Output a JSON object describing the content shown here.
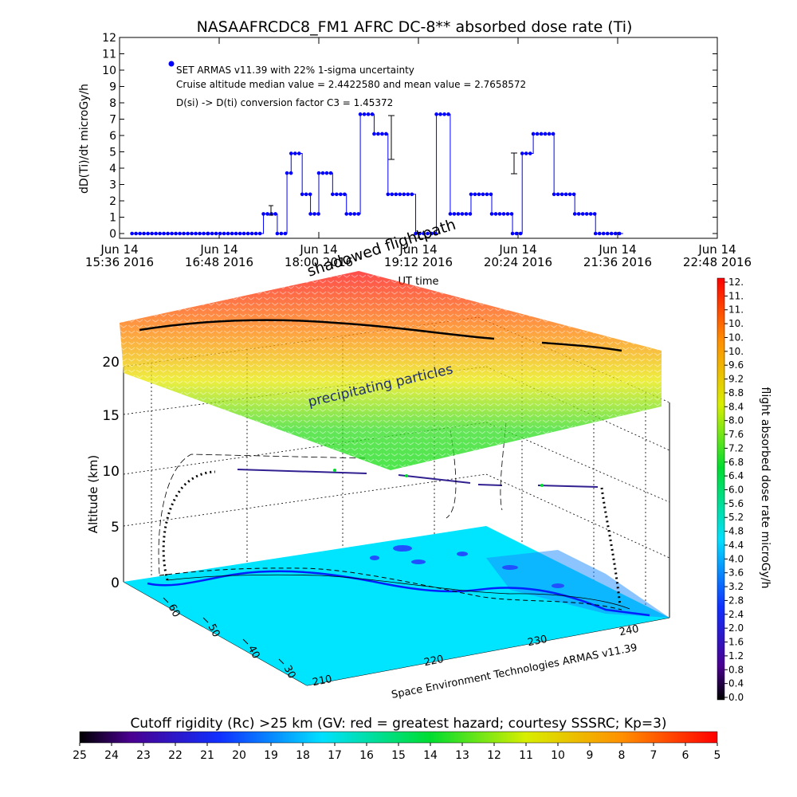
{
  "top_chart": {
    "title": "NASAAFRCDC8_FM1 AFRC DC-8** absorbed dose rate (Ti)",
    "ylabel": "dD(Ti)/dt microGy/h",
    "xlabel": "UT time",
    "legend": "SET ARMAS v11.39 with 22% 1-sigma uncertainty",
    "annotation_1": "Cruise altitude median value = 2.4422580 and mean value = 2.7658572",
    "annotation_2": "D(si) -> D(ti) conversion factor C3 = 1.45372",
    "y_ticks": [
      "0",
      "1",
      "2",
      "3",
      "4",
      "5",
      "6",
      "7",
      "8",
      "9",
      "10",
      "11",
      "12"
    ],
    "x_tick_dates": [
      "Jun 14",
      "Jun 14",
      "Jun 14",
      "Jun 14",
      "Jun 14",
      "Jun 14",
      "Jun 14"
    ],
    "x_tick_times": [
      "15:36 2016",
      "16:48 2016",
      "18:00 2016",
      "19:12 2016",
      "20:24 2016",
      "21:36 2016",
      "22:48 2016"
    ]
  },
  "chart_data": [
    {
      "type": "line",
      "title": "NASAAFRCDC8_FM1 AFRC DC-8** absorbed dose rate (Ti)",
      "xlabel": "UT time",
      "ylabel": "dD(Ti)/dt microGy/h",
      "ylim": [
        0,
        12
      ],
      "xlim": [
        "2016-06-14 15:36",
        "2016-06-14 22:48"
      ],
      "grid": false,
      "legend": "top-left",
      "series": [
        {
          "name": "SET ARMAS v11.39 with 22% 1-sigma uncertainty",
          "x": [
            "2016-06-14 15:45",
            "2016-06-14 16:40",
            "2016-06-14 17:20",
            "2016-06-14 17:30",
            "2016-06-14 17:37",
            "2016-06-14 17:40",
            "2016-06-14 17:48",
            "2016-06-14 17:54",
            "2016-06-14 18:00",
            "2016-06-14 18:10",
            "2016-06-14 18:20",
            "2016-06-14 18:30",
            "2016-06-14 18:40",
            "2016-06-14 18:50",
            "2016-06-14 19:10",
            "2016-06-14 19:25",
            "2016-06-14 19:35",
            "2016-06-14 19:50",
            "2016-06-14 20:05",
            "2016-06-14 20:20",
            "2016-06-14 20:27",
            "2016-06-14 20:35",
            "2016-06-14 20:50",
            "2016-06-14 21:05",
            "2016-06-14 21:20",
            "2016-06-14 21:40"
          ],
          "y": [
            0,
            0,
            1.2,
            0,
            3.7,
            4.9,
            2.4,
            1.2,
            3.7,
            2.4,
            1.2,
            7.3,
            6.1,
            2.4,
            0,
            7.3,
            1.2,
            2.4,
            1.2,
            0,
            4.9,
            6.1,
            2.4,
            1.2,
            0,
            0
          ]
        }
      ]
    },
    {
      "type": "scatter",
      "title": "",
      "zlabel": "Altitude (km)",
      "zlim": [
        0,
        20
      ],
      "z_ticks": [
        "0",
        "5",
        "10",
        "15",
        "20"
      ],
      "x_ticks": [
        "210",
        "220",
        "230",
        "240"
      ],
      "y_ticks": [
        "30",
        "40",
        "50",
        "60"
      ],
      "annotations": [
        "shadowed flightpath",
        "precipitating particles"
      ],
      "credit": "Space Environment Technologies ARMAS v11.39"
    }
  ],
  "dose_colorbar": {
    "label": "flight absorbed dose rate microGy/h",
    "ticks": [
      "12.",
      "11.",
      "11.",
      "10.",
      "10.",
      "10.",
      "9.6",
      "9.2",
      "8.8",
      "8.4",
      "8.0",
      "7.6",
      "7.2",
      "6.8",
      "6.4",
      "6.0",
      "5.6",
      "5.2",
      "4.8",
      "4.4",
      "4.0",
      "3.6",
      "3.2",
      "2.8",
      "2.4",
      "2.0",
      "1.6",
      "1.2",
      "0.8",
      "0.4",
      "0.0"
    ]
  },
  "rigidity_colorbar": {
    "title": "Cutoff rigidity (Rc) >25 km (GV: red = greatest hazard; courtesy SSSRC; Kp=3)",
    "ticks": [
      "25",
      "24",
      "23",
      "22",
      "21",
      "20",
      "19",
      "18",
      "17",
      "16",
      "15",
      "14",
      "13",
      "12",
      "11",
      "10",
      "9",
      "8",
      "7",
      "6",
      "5"
    ]
  },
  "colors": {
    "series_line": "#0000ff",
    "track": "#000000",
    "map_ocean": "#00e5ff",
    "map_water": "#2050ff"
  }
}
